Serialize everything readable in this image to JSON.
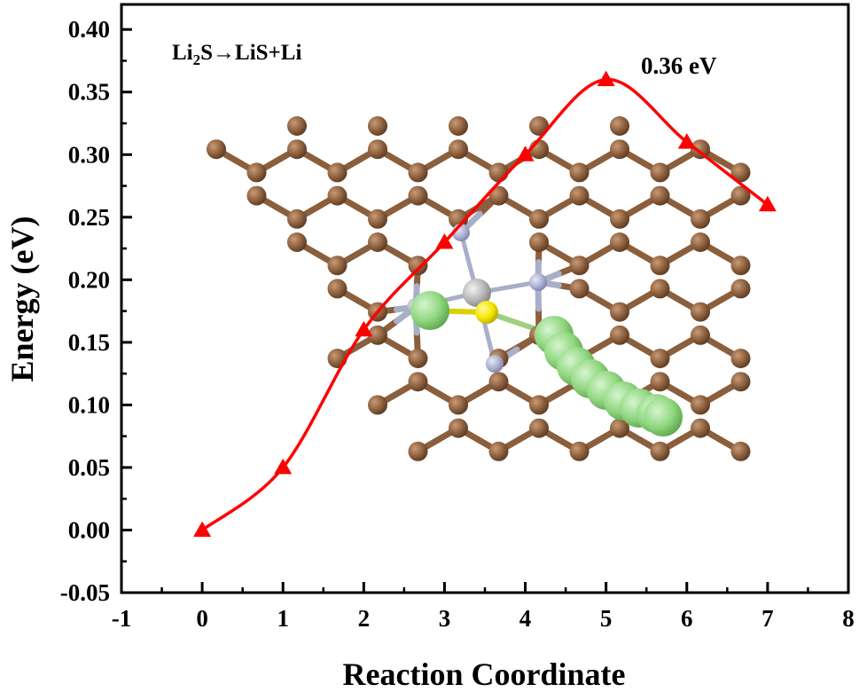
{
  "chart_data": {
    "type": "line",
    "xlabel": "Reaction Coordinate",
    "ylabel": "Energy (eV)",
    "xlim": [
      -1,
      8
    ],
    "ylim": [
      -0.05,
      0.42
    ],
    "xticks": [
      -1,
      0,
      1,
      2,
      3,
      4,
      5,
      6,
      7,
      8
    ],
    "yticks": [
      -0.05,
      0.0,
      0.05,
      0.1,
      0.15,
      0.2,
      0.25,
      0.3,
      0.35,
      0.4
    ],
    "xtick_labels": [
      "-1",
      "0",
      "1",
      "2",
      "3",
      "4",
      "5",
      "6",
      "7",
      "8"
    ],
    "ytick_labels": [
      "-0.05",
      "0.00",
      "0.05",
      "0.10",
      "0.15",
      "0.20",
      "0.25",
      "0.30",
      "0.35",
      "0.40"
    ],
    "grid": false,
    "series": [
      {
        "x": [
          0,
          1,
          2,
          3,
          4,
          5,
          6,
          7
        ],
        "y": [
          0.0,
          0.05,
          0.16,
          0.23,
          0.3,
          0.36,
          0.31,
          0.26
        ],
        "color": "#ff0000",
        "marker": "triangle"
      }
    ],
    "annotations": [
      {
        "prefix": "Li",
        "sub": "2",
        "suffix": "S→LiS+Li"
      },
      {
        "text": "0.36 eV",
        "x": 5,
        "y": 0.36
      }
    ]
  },
  "inset": {
    "description_icon": "molecular-structure-icon",
    "colors": {
      "carbon": "#8b5e3c",
      "nitrogen": "#b4b9d6",
      "metal": "#b8b8b8",
      "sulfur": "#f2e600",
      "lithium": "#8fd67e"
    }
  }
}
